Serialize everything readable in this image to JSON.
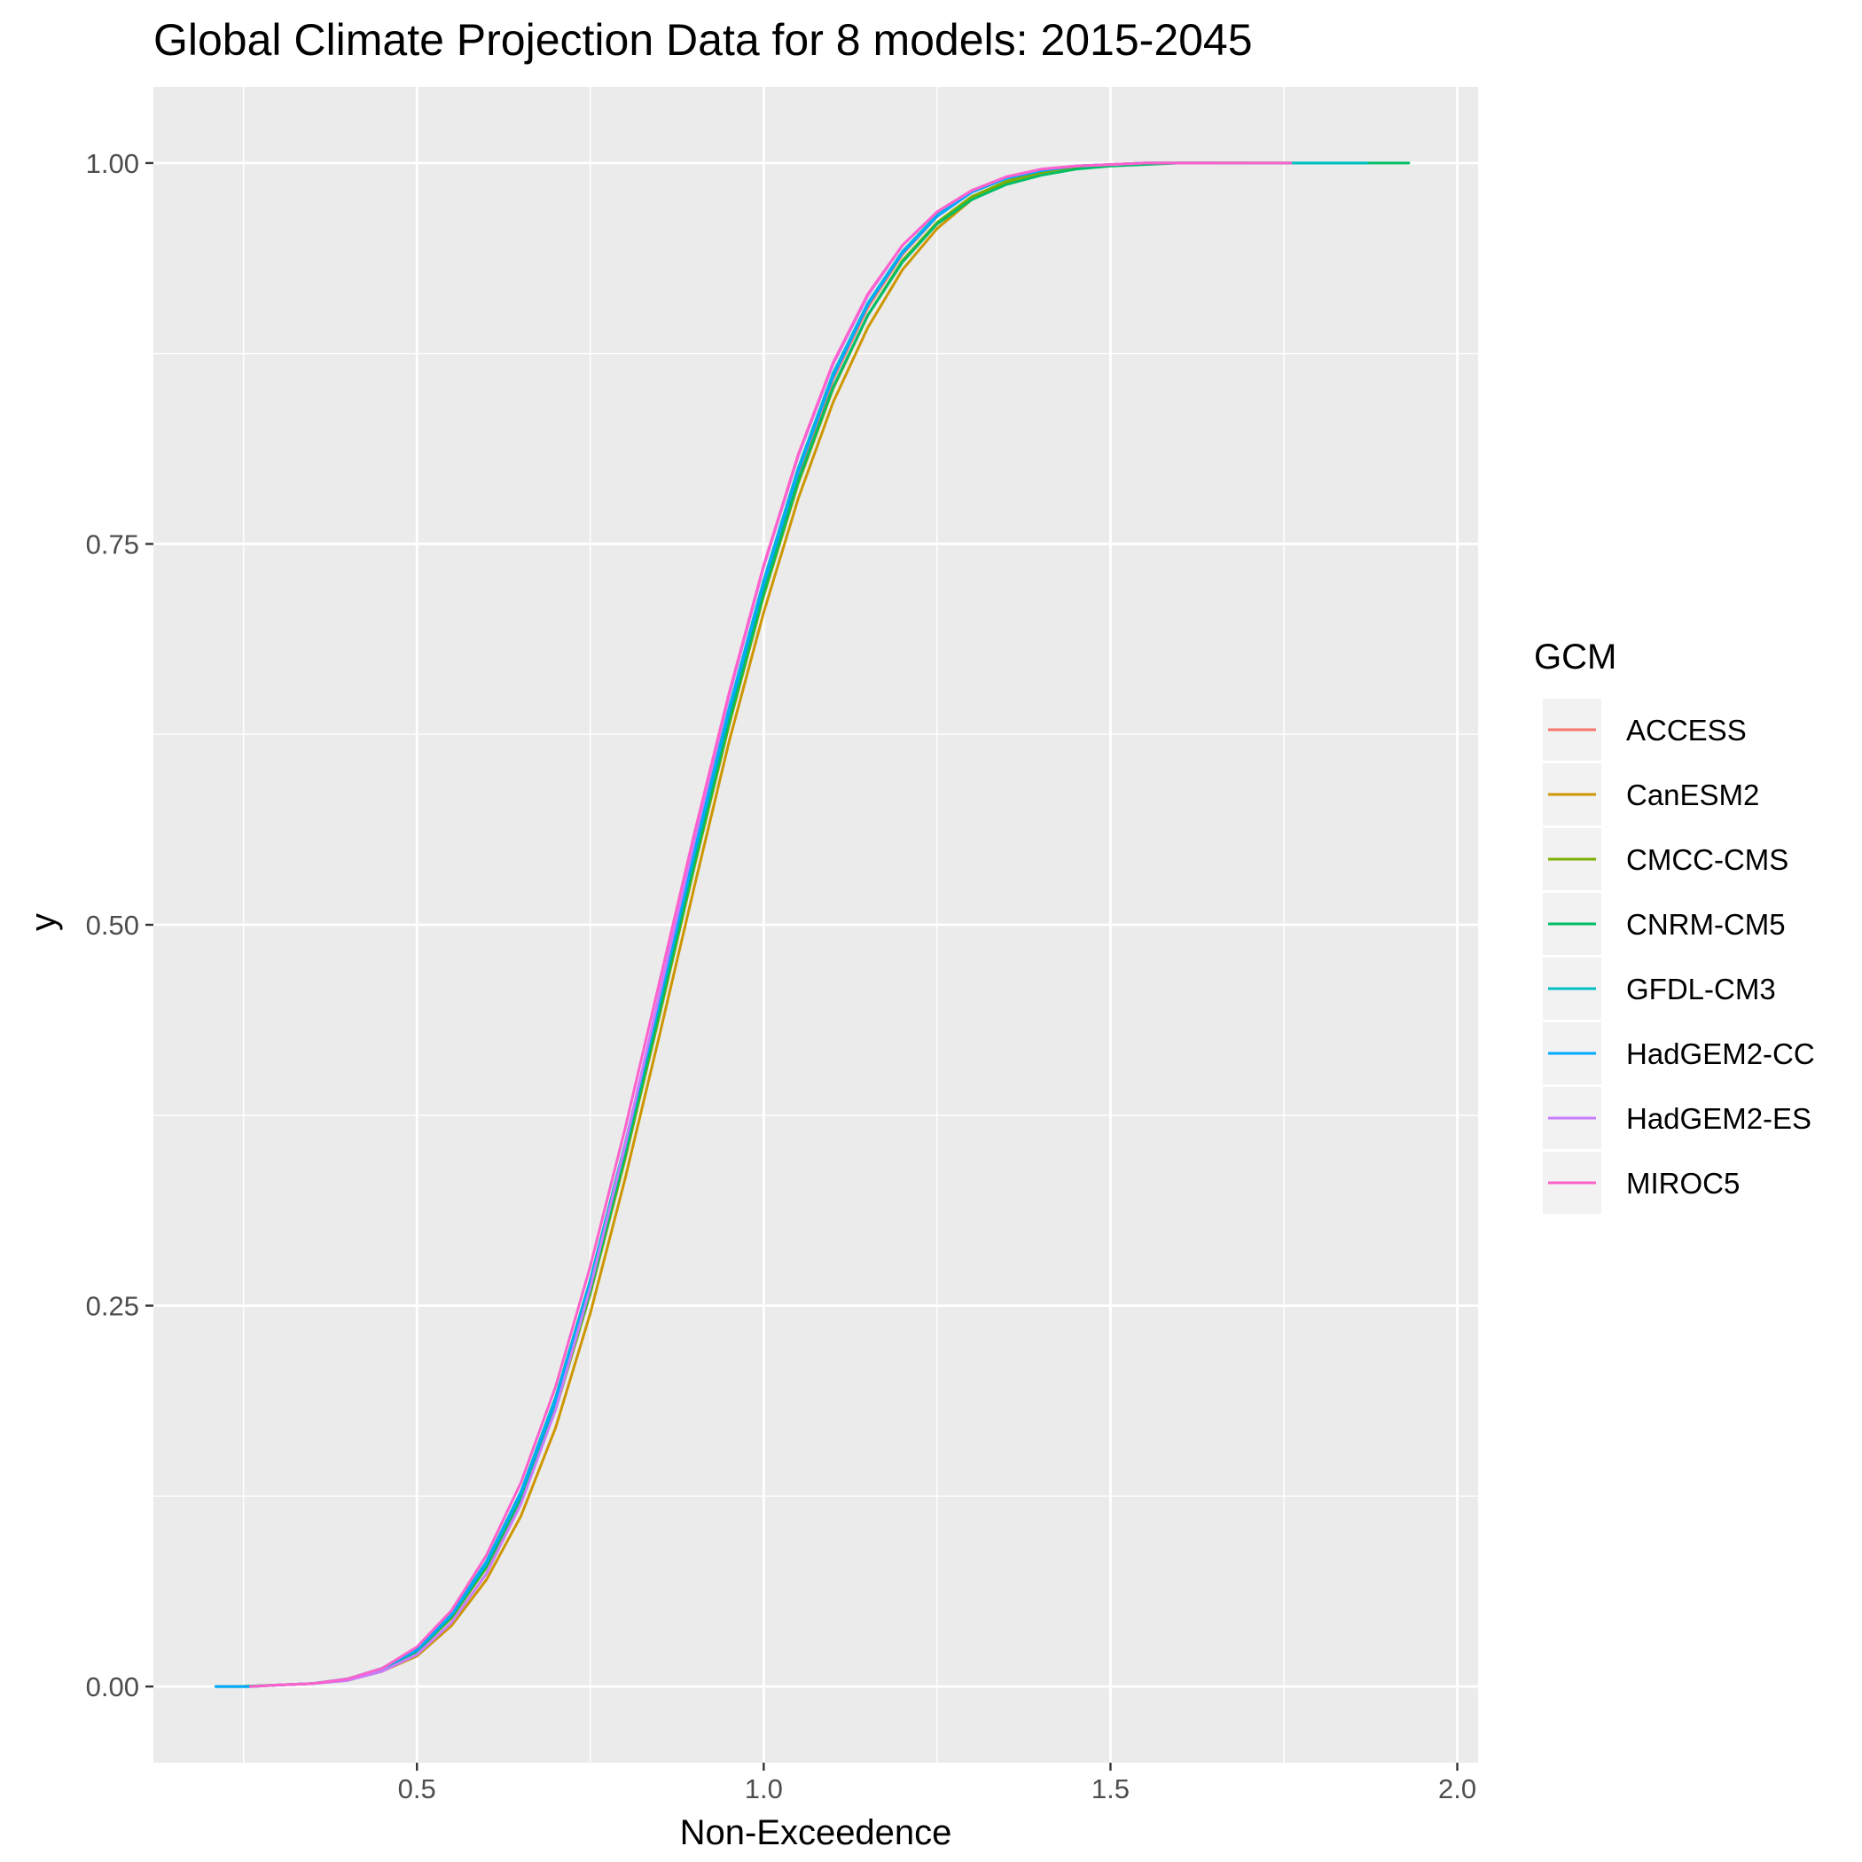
{
  "chart_data": {
    "type": "line",
    "title": "Global Climate Projection Data for 8 models: 2015-2045",
    "xlabel": "Non-Exceedence",
    "ylabel": "y",
    "xlim": [
      0.12,
      2.03
    ],
    "ylim": [
      -0.05,
      1.05
    ],
    "x_ticks": [
      0.5,
      1.0,
      1.5,
      2.0
    ],
    "x_tick_labels": [
      "0.5",
      "1.0",
      "1.5",
      "2.0"
    ],
    "y_ticks": [
      0.0,
      0.25,
      0.5,
      0.75,
      1.0
    ],
    "y_tick_labels": [
      "0.00",
      "0.25",
      "0.50",
      "0.75",
      "1.00"
    ],
    "grid": true,
    "legend": {
      "title": "GCM",
      "position": "right"
    },
    "series": [
      {
        "name": "ACCESS",
        "color": "#F8766D",
        "x": [
          0.25,
          0.3,
          0.35,
          0.4,
          0.45,
          0.5,
          0.55,
          0.6,
          0.65,
          0.7,
          0.75,
          0.8,
          0.85,
          0.9,
          0.95,
          1.0,
          1.05,
          1.1,
          1.15,
          1.2,
          1.25,
          1.3,
          1.35,
          1.4,
          1.45,
          1.5,
          1.55,
          1.6,
          1.65
        ],
        "y": [
          0.0,
          0.001,
          0.002,
          0.005,
          0.012,
          0.024,
          0.047,
          0.08,
          0.125,
          0.185,
          0.262,
          0.35,
          0.445,
          0.542,
          0.635,
          0.72,
          0.795,
          0.858,
          0.905,
          0.94,
          0.965,
          0.981,
          0.99,
          0.995,
          0.998,
          0.999,
          1.0,
          1.0,
          1.0
        ]
      },
      {
        "name": "CanESM2",
        "color": "#CD9600",
        "x": [
          0.26,
          0.3,
          0.35,
          0.4,
          0.45,
          0.5,
          0.55,
          0.6,
          0.65,
          0.7,
          0.75,
          0.8,
          0.85,
          0.9,
          0.95,
          1.0,
          1.05,
          1.1,
          1.15,
          1.2,
          1.25,
          1.3,
          1.35,
          1.4,
          1.45,
          1.5,
          1.55,
          1.6,
          1.7
        ],
        "y": [
          0.0,
          0.001,
          0.002,
          0.004,
          0.01,
          0.02,
          0.04,
          0.07,
          0.112,
          0.17,
          0.245,
          0.333,
          0.428,
          0.525,
          0.62,
          0.705,
          0.78,
          0.843,
          0.892,
          0.93,
          0.957,
          0.976,
          0.987,
          0.993,
          0.997,
          0.999,
          1.0,
          1.0,
          1.0
        ]
      },
      {
        "name": "CMCC-CMS",
        "color": "#7CAE00",
        "x": [
          0.24,
          0.3,
          0.35,
          0.4,
          0.45,
          0.5,
          0.55,
          0.6,
          0.65,
          0.7,
          0.75,
          0.8,
          0.85,
          0.9,
          0.95,
          1.0,
          1.05,
          1.1,
          1.15,
          1.2,
          1.25,
          1.3,
          1.35,
          1.4,
          1.45,
          1.5,
          1.55,
          1.6,
          1.75
        ],
        "y": [
          0.0,
          0.001,
          0.002,
          0.005,
          0.011,
          0.023,
          0.045,
          0.078,
          0.122,
          0.182,
          0.258,
          0.346,
          0.441,
          0.538,
          0.631,
          0.716,
          0.79,
          0.852,
          0.9,
          0.936,
          0.961,
          0.978,
          0.988,
          0.994,
          0.997,
          0.999,
          1.0,
          1.0,
          1.0
        ]
      },
      {
        "name": "CNRM-CM5",
        "color": "#00BE67",
        "x": [
          0.21,
          0.26,
          0.3,
          0.35,
          0.4,
          0.45,
          0.5,
          0.55,
          0.6,
          0.65,
          0.7,
          0.75,
          0.8,
          0.85,
          0.9,
          0.95,
          1.0,
          1.05,
          1.1,
          1.15,
          1.2,
          1.25,
          1.3,
          1.35,
          1.4,
          1.45,
          1.5,
          1.6,
          1.93
        ],
        "y": [
          0.0,
          0.0,
          0.001,
          0.002,
          0.005,
          0.011,
          0.023,
          0.046,
          0.079,
          0.124,
          0.184,
          0.26,
          0.349,
          0.444,
          0.541,
          0.634,
          0.718,
          0.792,
          0.853,
          0.9,
          0.935,
          0.96,
          0.976,
          0.986,
          0.992,
          0.996,
          0.998,
          1.0,
          1.0
        ]
      },
      {
        "name": "GFDL-CM3",
        "color": "#00BFC4",
        "x": [
          0.25,
          0.3,
          0.35,
          0.4,
          0.45,
          0.5,
          0.55,
          0.6,
          0.65,
          0.7,
          0.75,
          0.8,
          0.85,
          0.9,
          0.95,
          1.0,
          1.05,
          1.1,
          1.15,
          1.2,
          1.25,
          1.3,
          1.35,
          1.4,
          1.45,
          1.5,
          1.55,
          1.6,
          1.87
        ],
        "y": [
          0.0,
          0.001,
          0.002,
          0.005,
          0.012,
          0.025,
          0.048,
          0.082,
          0.128,
          0.19,
          0.267,
          0.356,
          0.452,
          0.549,
          0.642,
          0.726,
          0.8,
          0.862,
          0.908,
          0.942,
          0.966,
          0.981,
          0.99,
          0.995,
          0.998,
          0.999,
          1.0,
          1.0,
          1.0
        ]
      },
      {
        "name": "HadGEM2-CC",
        "color": "#00A9FF",
        "x": [
          0.21,
          0.26,
          0.3,
          0.35,
          0.4,
          0.45,
          0.5,
          0.55,
          0.6,
          0.65,
          0.7,
          0.75,
          0.8,
          0.85,
          0.9,
          0.95,
          1.0,
          1.05,
          1.1,
          1.15,
          1.2,
          1.25,
          1.3,
          1.35,
          1.4,
          1.45,
          1.5,
          1.55,
          1.65
        ],
        "y": [
          0.0,
          0.0,
          0.001,
          0.002,
          0.005,
          0.012,
          0.024,
          0.047,
          0.081,
          0.127,
          0.188,
          0.265,
          0.354,
          0.45,
          0.547,
          0.64,
          0.724,
          0.798,
          0.86,
          0.907,
          0.941,
          0.965,
          0.981,
          0.99,
          0.995,
          0.998,
          0.999,
          1.0,
          1.0
        ]
      },
      {
        "name": "HadGEM2-ES",
        "color": "#C77CFF",
        "x": [
          0.26,
          0.3,
          0.35,
          0.4,
          0.45,
          0.5,
          0.55,
          0.6,
          0.65,
          0.7,
          0.75,
          0.8,
          0.85,
          0.9,
          0.95,
          1.0,
          1.05,
          1.1,
          1.15,
          1.2,
          1.25,
          1.3,
          1.35,
          1.4,
          1.45,
          1.5,
          1.55,
          1.6,
          1.65
        ],
        "y": [
          0.0,
          0.001,
          0.002,
          0.004,
          0.01,
          0.021,
          0.042,
          0.074,
          0.12,
          0.182,
          0.262,
          0.355,
          0.455,
          0.555,
          0.65,
          0.735,
          0.808,
          0.868,
          0.913,
          0.946,
          0.968,
          0.982,
          0.991,
          0.996,
          0.998,
          0.999,
          1.0,
          1.0,
          1.0
        ]
      },
      {
        "name": "MIROC5",
        "color": "#FF61CC",
        "x": [
          0.26,
          0.3,
          0.35,
          0.4,
          0.45,
          0.5,
          0.55,
          0.6,
          0.65,
          0.7,
          0.75,
          0.8,
          0.85,
          0.9,
          0.95,
          1.0,
          1.05,
          1.1,
          1.15,
          1.2,
          1.25,
          1.3,
          1.35,
          1.4,
          1.45,
          1.5,
          1.55,
          1.6,
          1.76
        ],
        "y": [
          0.0,
          0.001,
          0.002,
          0.005,
          0.012,
          0.026,
          0.05,
          0.086,
          0.134,
          0.197,
          0.276,
          0.366,
          0.463,
          0.56,
          0.652,
          0.736,
          0.809,
          0.869,
          0.914,
          0.946,
          0.968,
          0.982,
          0.991,
          0.996,
          0.998,
          0.999,
          1.0,
          1.0,
          1.0
        ]
      }
    ]
  }
}
